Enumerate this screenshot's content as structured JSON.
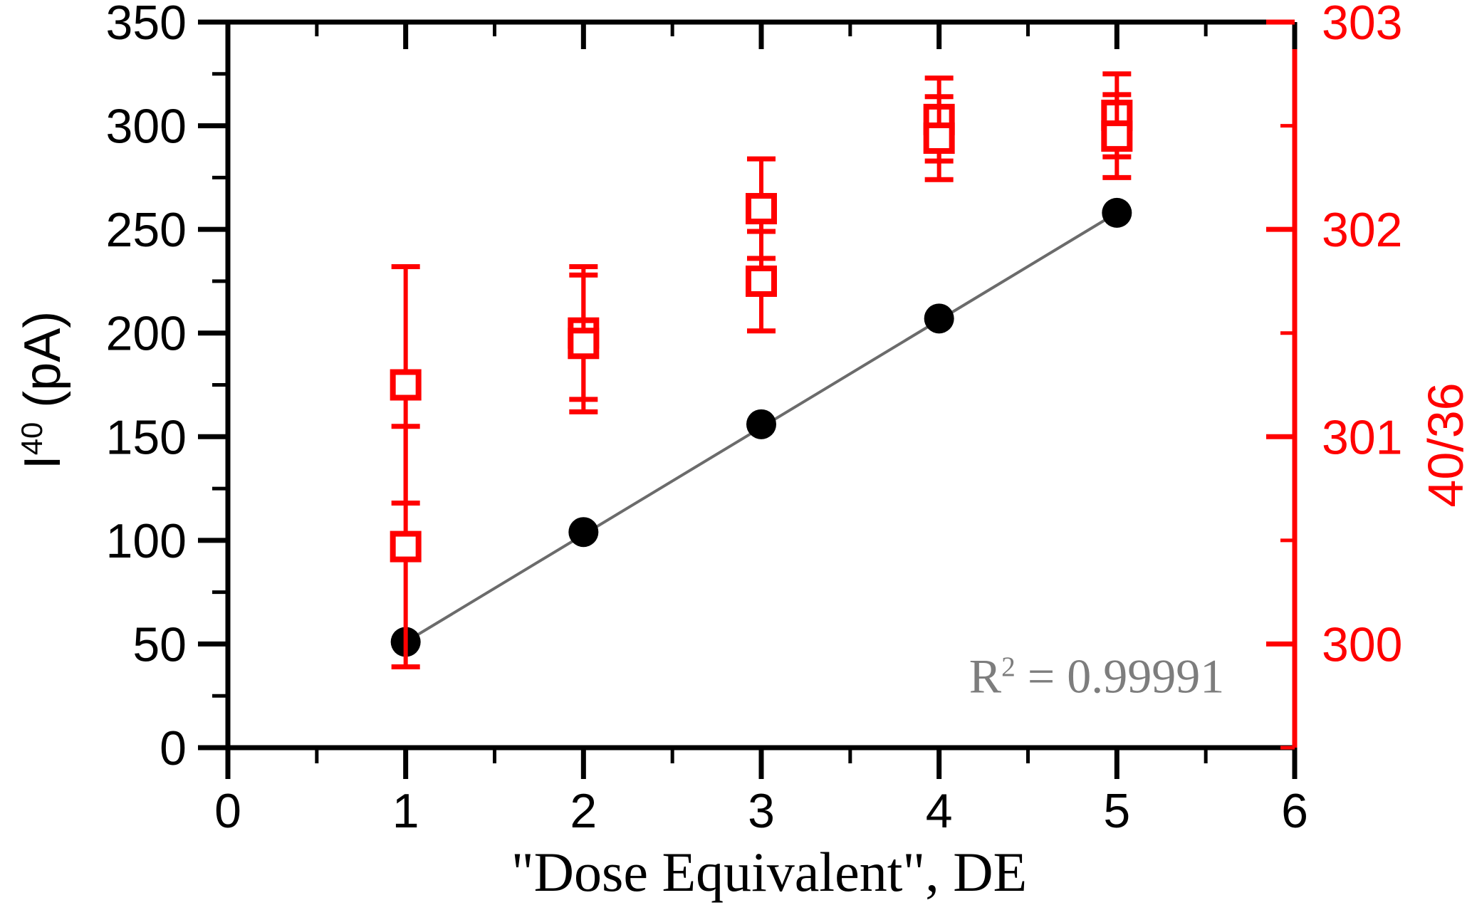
{
  "figure": {
    "xlabel": "\"Dose Equivalent\", DE",
    "ylabel_left": {
      "base": "I",
      "sup": "40",
      "rest": " (pA)"
    },
    "ylabel_right": "40/36",
    "annotation": {
      "base": "R",
      "sup": "2",
      "rest": " = 0.99991"
    }
  },
  "colors": {
    "black_series": "#000000",
    "red_series": "#ff0000",
    "fit_line": "#6b6b6b",
    "annotation_gray": "#7d7d7d",
    "background": "#ffffff"
  },
  "chart_data": {
    "type": "scatter",
    "x": [
      1,
      2,
      3,
      4,
      5
    ],
    "series": [
      {
        "name": "I40 current (filled black circles, left axis)",
        "axis": "left",
        "marker": "filled-circle",
        "color": "#000000",
        "values": [
          51,
          104,
          156,
          207,
          258
        ],
        "fit_line": {
          "x": [
            1,
            5
          ],
          "y": [
            51,
            258
          ],
          "color": "#6b6b6b"
        },
        "r_squared": 0.99991
      },
      {
        "name": "40/36 ratio upper squares (open red squares, right axis)",
        "axis": "right",
        "marker": "open-square",
        "color": "#ff0000",
        "values": [
          301.25,
          301.5,
          302.1,
          302.53,
          302.55
        ],
        "yerr": [
          0.57,
          0.32,
          0.24,
          0.2,
          0.2
        ]
      },
      {
        "name": "40/36 ratio lower squares (open red squares, right axis)",
        "axis": "right",
        "marker": "open-square",
        "color": "#ff0000",
        "values": [
          300.47,
          301.45,
          301.75,
          302.44,
          302.45
        ],
        "yerr": [
          0.58,
          0.33,
          0.24,
          0.2,
          0.2
        ]
      }
    ],
    "x_axis": {
      "label": "\"Dose Equivalent\", DE",
      "min": 0,
      "max": 6,
      "ticks": [
        0,
        1,
        2,
        3,
        4,
        5,
        6
      ],
      "minor_step": 0.5
    },
    "y_left_axis": {
      "label": "I40 (pA)",
      "min": 0,
      "max": 350,
      "ticks": [
        0,
        50,
        100,
        150,
        200,
        250,
        300,
        350
      ],
      "minor_step": 25
    },
    "y_right_axis": {
      "label": "40/36",
      "min": 299.5,
      "max": 303,
      "ticks": [
        300,
        301,
        302,
        303
      ],
      "minor_step": 0.5
    },
    "grid": false,
    "legend": false,
    "annotation": "R^2 = 0.99991"
  }
}
